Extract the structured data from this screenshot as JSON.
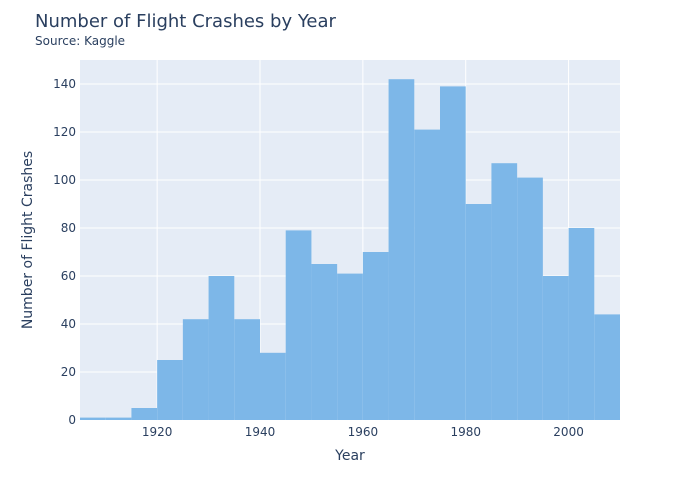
{
  "chart_data": {
    "type": "bar",
    "title": "Number of Flight Crashes by Year",
    "subtitle": "Source: Kaggle",
    "xlabel": "Year",
    "ylabel": "Number of Flight Crashes",
    "bin_edges": [
      1905,
      1910,
      1915,
      1920,
      1925,
      1930,
      1935,
      1940,
      1945,
      1950,
      1955,
      1960,
      1965,
      1970,
      1975,
      1980,
      1985,
      1990,
      1995,
      2000,
      2005,
      2010
    ],
    "values": [
      1,
      1,
      5,
      25,
      42,
      60,
      42,
      28,
      79,
      65,
      61,
      70,
      142,
      121,
      139,
      90,
      107,
      101,
      60,
      80,
      44
    ],
    "xlim": [
      1905,
      2010
    ],
    "ylim": [
      0,
      150
    ],
    "xticks": [
      1920,
      1940,
      1960,
      1980,
      2000
    ],
    "yticks": [
      0,
      20,
      40,
      60,
      80,
      100,
      120,
      140
    ],
    "grid": true,
    "bar_color": "#7db7e8",
    "plot_background": "#e5ecf6"
  }
}
